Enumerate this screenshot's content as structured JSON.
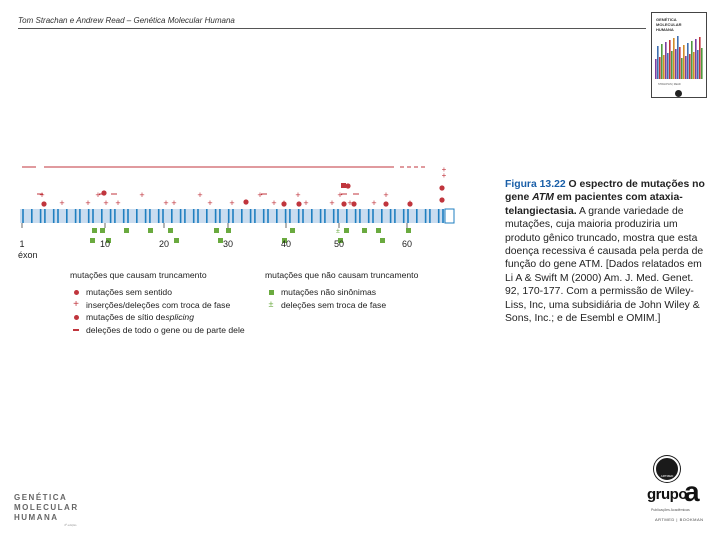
{
  "header": {
    "title": "Tom Strachan e Andrew Read – Genética Molecular Humana"
  },
  "book_cover": {
    "title_lines": [
      "GENÉTICA",
      "MOLECULAR",
      "HUMANA"
    ],
    "authors": "STRACHAN | READ",
    "colors": [
      "#7b3fa0",
      "#3f6fb0",
      "#c0353d",
      "#4f9a3f",
      "#d08a2a"
    ]
  },
  "figure": {
    "axis_labels": [
      "1",
      "10",
      "20",
      "30",
      "40",
      "50",
      "60"
    ],
    "exon_label": "éxon",
    "colors": {
      "gene": "#c9dcef",
      "exon": "#1f7fc0",
      "red": "#c0353d",
      "green": "#6aaa3f"
    },
    "legend": {
      "truncating": {
        "heading": "mutações que causam truncamento",
        "items": [
          {
            "symbol": "dot",
            "text": "mutações sem sentido"
          },
          {
            "symbol": "plus",
            "text": "inserções/deleções com troca de fase"
          },
          {
            "symbol": "dot",
            "text_before": "mutações de sítio de ",
            "text_italic": "splicing"
          },
          {
            "symbol": "dash",
            "text": "deleções de todo o gene ou de parte dele"
          }
        ]
      },
      "non_truncating": {
        "heading": "mutações que não causam truncamento",
        "items": [
          {
            "symbol": "square",
            "text": "mutações não sinônimas"
          },
          {
            "symbol": "pm",
            "text": "deleções sem troca de fase"
          }
        ]
      }
    }
  },
  "caption": {
    "label": "Figura 13.22",
    "title_before": "O espectro de mutações no gene ",
    "title_gene": "ATM",
    "title_after": " em pacientes com ataxia-telangiectasia.",
    "body": "A grande variedade de mutações, cuja maioria produziria um produto gênico truncado, mostra que esta doença recessiva é causada pela perda de função do gene ATM. [Dados relatados em Li A & Swift M (2000) Am. J. Med. Genet. 92, 170-177. Com a permissão de Wiley-Liss, Inc, uma subsidiária de John Wiley & Sons, Inc.; e de Esembl e OMIM.]"
  },
  "footer": {
    "book_lines": [
      "GENÉTICA",
      "MOLECULAR",
      "HUMANA"
    ],
    "edition": "4ª edição"
  },
  "publisher": {
    "emblem": "ARTMED",
    "name": "grupo",
    "letter": "a",
    "tagline": "Publicações Acadêmicas",
    "imprints": "ARTMED | BOOKMAN"
  }
}
